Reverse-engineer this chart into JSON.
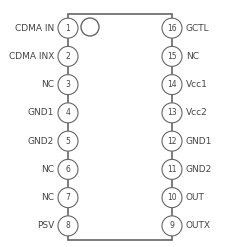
{
  "left_pins": [
    {
      "num": 1,
      "name": "CDMA IN"
    },
    {
      "num": 2,
      "name": "CDMA INX"
    },
    {
      "num": 3,
      "name": "NC"
    },
    {
      "num": 4,
      "name": "GND1"
    },
    {
      "num": 5,
      "name": "GND2"
    },
    {
      "num": 6,
      "name": "NC"
    },
    {
      "num": 7,
      "name": "NC"
    },
    {
      "num": 8,
      "name": "PSV"
    }
  ],
  "right_pins": [
    {
      "num": 16,
      "name": "GCTL"
    },
    {
      "num": 15,
      "name": "NC"
    },
    {
      "num": 14,
      "name": "Vcc1"
    },
    {
      "num": 13,
      "name": "Vcc2"
    },
    {
      "num": 12,
      "name": "GND1"
    },
    {
      "num": 11,
      "name": "GND2"
    },
    {
      "num": 10,
      "name": "OUT"
    },
    {
      "num": 9,
      "name": "OUTX"
    }
  ],
  "body_color": "white",
  "body_edge_color": "#666666",
  "circle_color": "white",
  "circle_edge_color": "#666666",
  "text_color": "#444444",
  "background_color": "white",
  "notch_color": "white",
  "notch_edge_color": "#666666",
  "pin_name_fontsize": 6.5,
  "pin_num_fontsize": 5.5
}
